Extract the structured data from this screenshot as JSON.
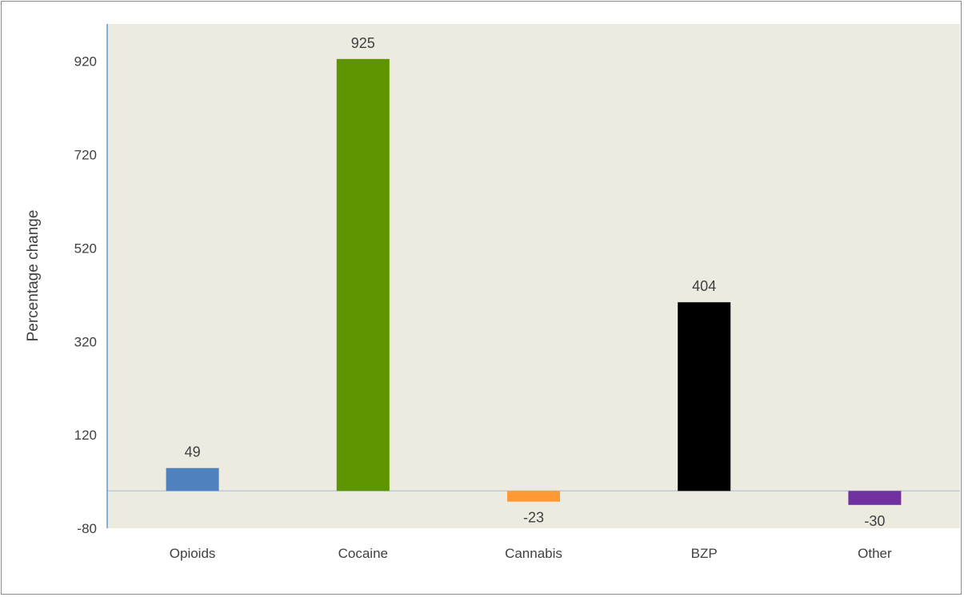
{
  "chart_data": {
    "type": "bar",
    "title": "",
    "xlabel": "",
    "ylabel": "Percentage change",
    "categories": [
      "Opioids",
      "Cocaine",
      "Cannabis",
      "BZP",
      "Other"
    ],
    "values": [
      49,
      925,
      -23,
      404,
      -30
    ],
    "data_labels": [
      "49",
      "925",
      "-23",
      "404",
      "-30"
    ],
    "colors": [
      "#4F81BD",
      "#5E9400",
      "#FF9933",
      "#000000",
      "#7030A0"
    ],
    "ylim": [
      -80,
      1000
    ],
    "yticks": [
      -80,
      120,
      320,
      520,
      720,
      920
    ],
    "ytick_labels": [
      "-80",
      "120",
      "320",
      "520",
      "720",
      "920"
    ],
    "grid": false,
    "legend": "none",
    "plot_background": "#EDEAE0",
    "value_axis_color": "#5B9BD5",
    "zero_line_color": "#BFC9D6"
  }
}
